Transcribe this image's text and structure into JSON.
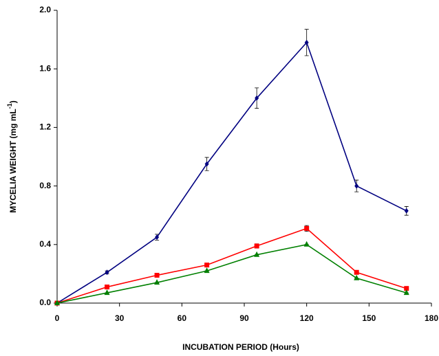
{
  "chart_data": {
    "type": "line",
    "x_label": "INCUBATION PERIOD (Hours)",
    "y_label": {
      "main": "MYCELIA WEIGHT (mg mL",
      "sup": "-1",
      "end": ")"
    },
    "x": [
      0,
      24,
      48,
      72,
      96,
      120,
      144,
      168
    ],
    "series": [
      {
        "color": "#000080",
        "marker": "diamond",
        "values": [
          0,
          0.21,
          0.45,
          0.95,
          1.4,
          1.78,
          0.8,
          0.63
        ],
        "errors": [
          0,
          0.01,
          0.02,
          0.045,
          0.07,
          0.09,
          0.04,
          0.03
        ]
      },
      {
        "color": "#ff0000",
        "marker": "square",
        "values": [
          0,
          0.11,
          0.19,
          0.26,
          0.39,
          0.51,
          0.21,
          0.1
        ],
        "errors": [
          0,
          0,
          0,
          0,
          0.015,
          0.02,
          0,
          0
        ]
      },
      {
        "color": "#008000",
        "marker": "triangle",
        "values": [
          0,
          0.07,
          0.14,
          0.22,
          0.33,
          0.4,
          0.17,
          0.07
        ],
        "errors": [
          0,
          0,
          0,
          0,
          0,
          0,
          0,
          0
        ]
      }
    ],
    "xlim": [
      0,
      180
    ],
    "xticks": [
      0,
      30,
      60,
      90,
      120,
      150,
      180
    ],
    "ylim": [
      0,
      2.0
    ],
    "yticks": [
      {
        "value": 0,
        "label": "0.0"
      },
      {
        "value": 0.4,
        "label": "0.4"
      },
      {
        "value": 0.8,
        "label": "0.8"
      },
      {
        "value": 1.2,
        "label": "1.2"
      },
      {
        "value": 1.6,
        "label": "1.6"
      },
      {
        "value": 2.0,
        "label": "2.0"
      }
    ],
    "grid": false
  }
}
